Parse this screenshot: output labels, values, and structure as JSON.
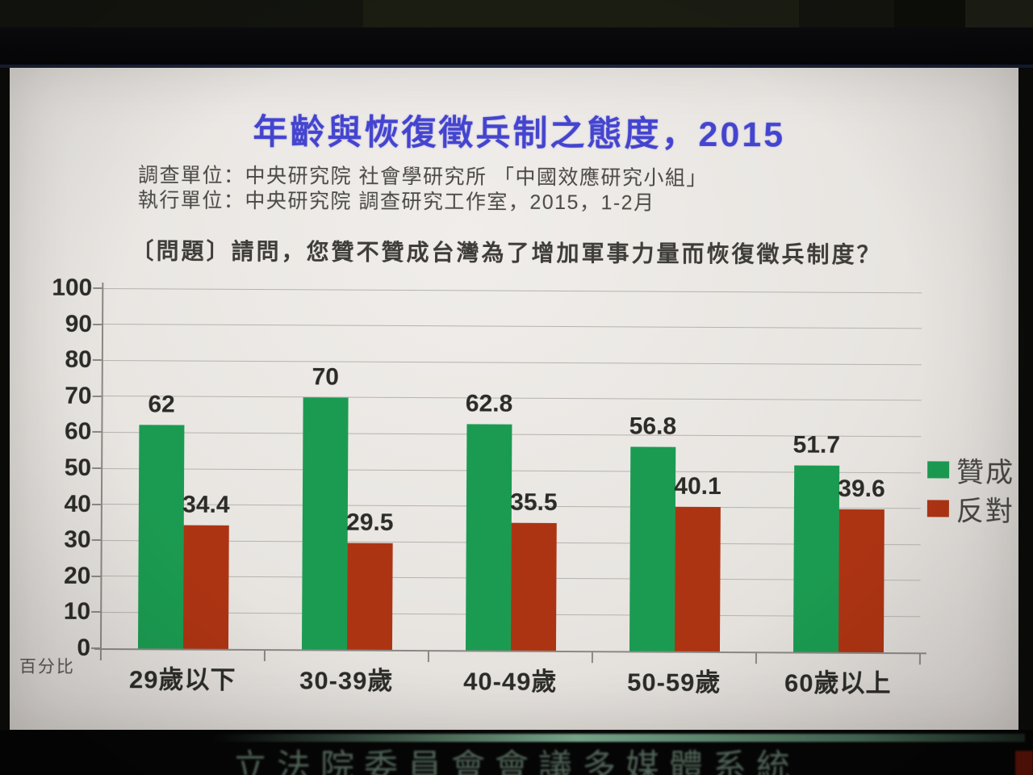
{
  "photo_overlay": {
    "system_banner": "立法院委員會會議多媒體系統"
  },
  "slide": {
    "title": "年齡與恢復徵兵制之態度，2015",
    "source_line1": "調查單位：中央研究院 社會學研究所 「中國效應研究小組」",
    "source_line2": "執行單位：中央研究院 調查研究工作室，2015，1-2月",
    "question": "〔問題〕請問，您贊不贊成台灣為了增加軍事力量而恢復徵兵制度？"
  },
  "chart_data": {
    "type": "bar",
    "title": "年齡與恢復徵兵制之態度，2015",
    "categories": [
      "29歲以下",
      "30-39歲",
      "40-49歲",
      "50-59歲",
      "60歲以上"
    ],
    "series": [
      {
        "name": "贊成",
        "color": "#1b9b51",
        "values": [
          62,
          70,
          62.8,
          56.8,
          51.7
        ]
      },
      {
        "name": "反對",
        "color": "#ad3413",
        "values": [
          34.4,
          29.5,
          35.5,
          40.1,
          39.6
        ]
      }
    ],
    "ylabel": "百分比",
    "ylim": [
      0,
      100
    ],
    "ytick_step": 10,
    "grid": true,
    "legend_position": "right",
    "bar_value_labels": true
  },
  "colors": {
    "title_text": "#4345cf",
    "body_text": "#454440",
    "agree_green": "#1b9b51",
    "oppose_red": "#ad3413",
    "slide_background": "#e9e6e2",
    "banner_text_green": "#a9cdb6"
  }
}
